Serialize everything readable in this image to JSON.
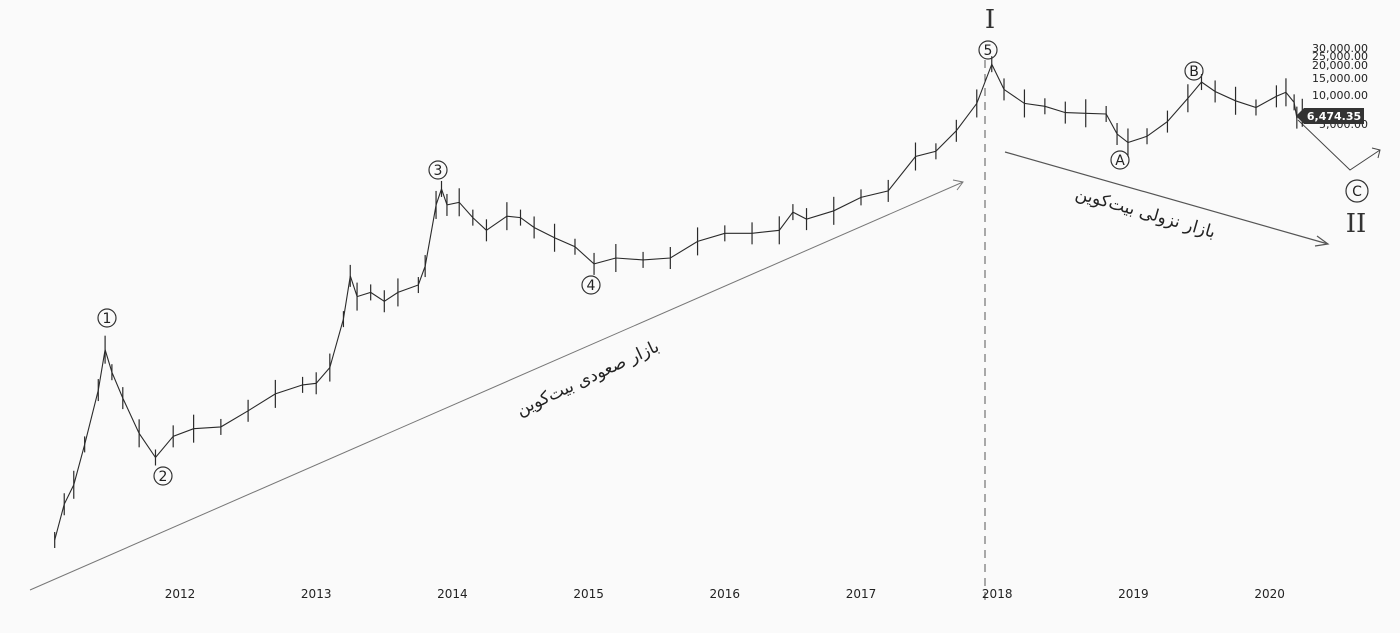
{
  "chart_data": {
    "type": "line",
    "title": "",
    "xlabel": "",
    "ylabel": "",
    "x_ticks": [
      "2012",
      "2013",
      "2014",
      "2015",
      "2016",
      "2017",
      "2018",
      "2019",
      "2020"
    ],
    "y_ticks": [
      "30,000.00",
      "25,000.00",
      "20,000.00",
      "15,000.00",
      "10,000.00",
      "5,000.00"
    ],
    "current_price": "6,474.35",
    "series": [
      {
        "points": [
          [
            2011.08,
            0.4
          ],
          [
            2011.15,
            0.9
          ],
          [
            2011.22,
            1.4
          ],
          [
            2011.3,
            3.5
          ],
          [
            2011.4,
            12
          ],
          [
            2011.45,
            30
          ],
          [
            2011.5,
            18
          ],
          [
            2011.58,
            10
          ],
          [
            2011.7,
            4.5
          ],
          [
            2011.82,
            2.6
          ],
          [
            2011.95,
            4.2
          ],
          [
            2012.1,
            5.0
          ],
          [
            2012.3,
            5.2
          ],
          [
            2012.5,
            7.5
          ],
          [
            2012.7,
            11
          ],
          [
            2012.9,
            13.5
          ],
          [
            2013.0,
            14
          ],
          [
            2013.1,
            20
          ],
          [
            2013.2,
            60
          ],
          [
            2013.25,
            160
          ],
          [
            2013.3,
            100
          ],
          [
            2013.4,
            110
          ],
          [
            2013.5,
            90
          ],
          [
            2013.6,
            110
          ],
          [
            2013.75,
            130
          ],
          [
            2013.8,
            200
          ],
          [
            2013.88,
            800
          ],
          [
            2013.92,
            1150
          ],
          [
            2013.96,
            800
          ],
          [
            2014.05,
            850
          ],
          [
            2014.15,
            600
          ],
          [
            2014.25,
            450
          ],
          [
            2014.4,
            620
          ],
          [
            2014.5,
            600
          ],
          [
            2014.6,
            480
          ],
          [
            2014.75,
            380
          ],
          [
            2014.9,
            310
          ],
          [
            2015.04,
            210
          ],
          [
            2015.2,
            240
          ],
          [
            2015.4,
            230
          ],
          [
            2015.6,
            240
          ],
          [
            2015.8,
            350
          ],
          [
            2016.0,
            420
          ],
          [
            2016.2,
            420
          ],
          [
            2016.4,
            450
          ],
          [
            2016.5,
            680
          ],
          [
            2016.6,
            580
          ],
          [
            2016.8,
            700
          ],
          [
            2017.0,
            950
          ],
          [
            2017.2,
            1100
          ],
          [
            2017.4,
            2400
          ],
          [
            2017.55,
            2700
          ],
          [
            2017.7,
            4300
          ],
          [
            2017.85,
            8000
          ],
          [
            2017.96,
            19500
          ],
          [
            2018.05,
            11000
          ],
          [
            2018.2,
            8000
          ],
          [
            2018.35,
            7500
          ],
          [
            2018.5,
            6500
          ],
          [
            2018.65,
            6400
          ],
          [
            2018.8,
            6300
          ],
          [
            2018.88,
            4000
          ],
          [
            2018.96,
            3300
          ],
          [
            2019.1,
            3800
          ],
          [
            2019.25,
            5300
          ],
          [
            2019.4,
            9000
          ],
          [
            2019.5,
            13000
          ],
          [
            2019.6,
            10500
          ],
          [
            2019.75,
            8500
          ],
          [
            2019.9,
            7300
          ],
          [
            2020.05,
            9400
          ],
          [
            2020.12,
            10300
          ],
          [
            2020.18,
            8200
          ],
          [
            2020.2,
            5800
          ],
          [
            2020.24,
            6474.35
          ]
        ]
      }
    ],
    "wave_labels": [
      {
        "label": "1",
        "x": 2011.45
      },
      {
        "label": "2",
        "x": 2011.85
      },
      {
        "label": "3",
        "x": 2013.92
      },
      {
        "label": "4",
        "x": 2015.04
      },
      {
        "label": "5",
        "x": 2017.96
      },
      {
        "label": "A",
        "x": 2018.96
      },
      {
        "label": "B",
        "x": 2019.5
      },
      {
        "label": "C",
        "x": 2020.7
      }
    ],
    "degree_labels": [
      "I",
      "II"
    ],
    "annotations": {
      "bull": "بازار صعودی بیت‌کوین",
      "bear": "بازار نزولی بیت‌کوین"
    },
    "colors": {
      "ink": "#2a2a2a",
      "price_tag": "#333333"
    }
  }
}
